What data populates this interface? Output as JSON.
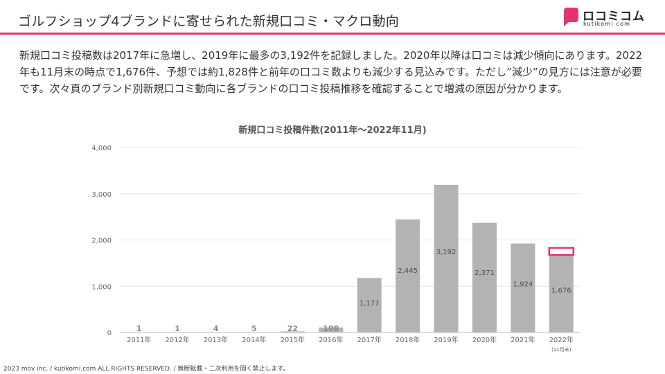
{
  "header": {
    "title": "ゴルフショップ4ブランドに寄せられた新規口コミ・マクロ動向",
    "accent_color": "#e6336e",
    "logo": {
      "name": "ロコミコム",
      "subtitle": "kutikomi com"
    }
  },
  "body": {
    "text": "新規口コミ投稿数は2017年に急増し、2019年に最多の3,192件を記録しました。2020年以降は口コミは減少傾向にあります。2022年も11月末の時点で1,676件、予想では約1,828件と前年の口コミ数よりも減少する見込みです。ただし”減少”の見方には注意が必要です。次々頁のブランド別新規口コミ動向に各ブランドの口コミ投稿推移を確認することで増減の原因が分かります。"
  },
  "chart_data": {
    "type": "bar",
    "title": "新規口コミ投稿件数(2011年～2022年11月)",
    "categories": [
      "2011年",
      "2012年",
      "2013年",
      "2014年",
      "2015年",
      "2016年",
      "2017年",
      "2018年",
      "2019年",
      "2020年",
      "2021年",
      "2022年"
    ],
    "category_notes": [
      "",
      "",
      "",
      "",
      "",
      "",
      "",
      "",
      "",
      "",
      "",
      "(11月末)"
    ],
    "values": [
      1,
      1,
      4,
      5,
      22,
      108,
      1177,
      2445,
      3192,
      2371,
      1924,
      1676
    ],
    "value_labels": [
      "1",
      "1",
      "4",
      "5",
      "22",
      "108",
      "1,177",
      "2,445",
      "3,192",
      "2,371",
      "1,924",
      "1,676"
    ],
    "forecast": {
      "category": "2022年",
      "value": 1828
    },
    "ylim": [
      0,
      4000
    ],
    "yticks": [
      0,
      1000,
      2000,
      3000,
      4000
    ],
    "ytick_labels": [
      "0",
      "1,000",
      "2,000",
      "3,000",
      "4,000"
    ],
    "grid": true,
    "bar_color": "#b3b3b3",
    "forecast_color": "#e6336e",
    "xlabel": "",
    "ylabel": ""
  },
  "footer": {
    "text": "2023 mov inc. / kutikomi.com ALL RIGHTS RESERVED. / 無断転載・二次利用を固く禁止します。"
  }
}
